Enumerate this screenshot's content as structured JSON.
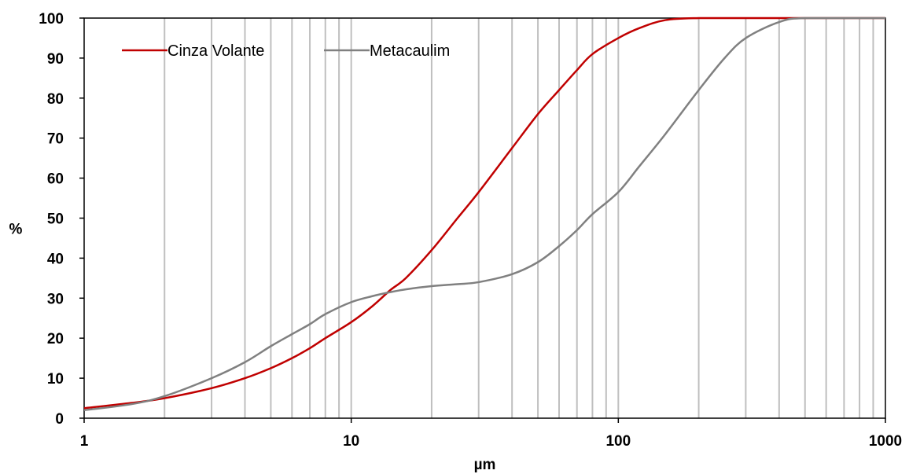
{
  "chart_data": {
    "type": "line",
    "xscale": "log",
    "xlim": [
      1,
      1000
    ],
    "ylim": [
      0,
      100
    ],
    "xlabel": "µm",
    "ylabel": "%",
    "x_ticks": [
      "1",
      "10",
      "100",
      "1000"
    ],
    "y_ticks": [
      "0",
      "10",
      "20",
      "30",
      "40",
      "50",
      "60",
      "70",
      "80",
      "90",
      "100"
    ],
    "grid": "vertical minor log gridlines",
    "legend_position": "top-left",
    "series": [
      {
        "name": "Cinza Volante",
        "color": "#c00000",
        "x": [
          1,
          1.5,
          2,
          3,
          4,
          5,
          6,
          7,
          8,
          10,
          12,
          14,
          16,
          20,
          25,
          30,
          40,
          50,
          60,
          70,
          80,
          100,
          120,
          150,
          200,
          300,
          500,
          1000
        ],
        "y": [
          2.5,
          3.8,
          5,
          7.5,
          10,
          12.5,
          15,
          17.5,
          20,
          24,
          28,
          32,
          35,
          42,
          50,
          56.5,
          67.5,
          76,
          82,
          87,
          91,
          95,
          97.5,
          99.5,
          100,
          100,
          100,
          100
        ]
      },
      {
        "name": "Metacaulim",
        "color": "#808080",
        "x": [
          1,
          1.5,
          2,
          3,
          4,
          5,
          6,
          7,
          8,
          10,
          12,
          14,
          16,
          20,
          25,
          30,
          40,
          50,
          60,
          70,
          80,
          100,
          120,
          150,
          200,
          250,
          300,
          400,
          500,
          1000
        ],
        "y": [
          2,
          3.5,
          5.5,
          10,
          14,
          18,
          21,
          23.5,
          26,
          29,
          30.5,
          31.5,
          32.2,
          33,
          33.5,
          34,
          36,
          39,
          43,
          47,
          51,
          56.5,
          63,
          71,
          82,
          90,
          95,
          99,
          100,
          100
        ]
      }
    ]
  }
}
